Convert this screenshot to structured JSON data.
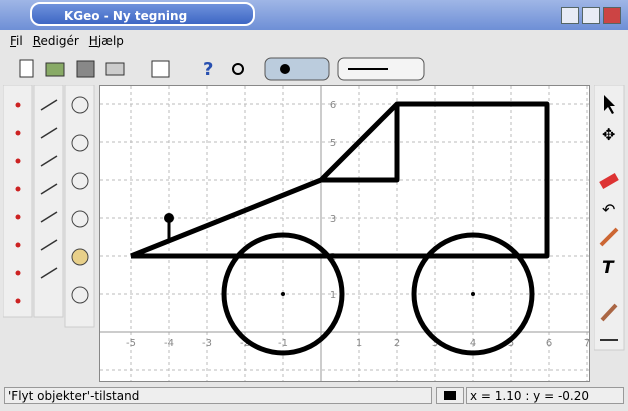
{
  "window": {
    "title": "KGeo - Ny tegning"
  },
  "menu": [
    "Fil",
    "Redigér",
    "Hjælp"
  ],
  "canvas": {
    "x_labels": [
      "-5",
      "-4",
      "-3",
      "-2",
      "-1",
      "1",
      "2",
      "3",
      "4",
      "5",
      "6",
      "7"
    ],
    "y_labels": [
      "1",
      "2",
      "3",
      "5",
      "6"
    ]
  },
  "status": {
    "mode": "'Flyt objekter'-tilstand",
    "coords": "x = 1.10 : y = -0.20"
  }
}
